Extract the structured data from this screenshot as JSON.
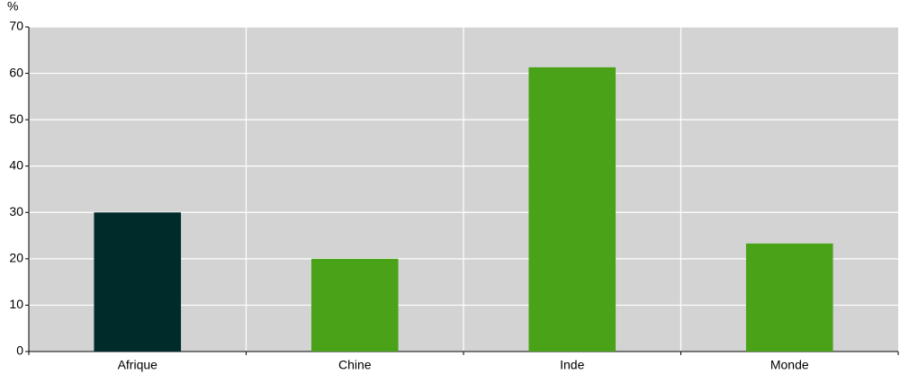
{
  "chart_data": {
    "type": "bar",
    "y_label": "%",
    "categories": [
      "Afrique",
      "Chine",
      "Inde",
      "Monde"
    ],
    "values": [
      30,
      20,
      61.3,
      23.3
    ],
    "colors": [
      "#002b2b",
      "#4aa218",
      "#4aa218",
      "#4aa218"
    ],
    "ylim": [
      0,
      70
    ],
    "yticks": [
      0,
      10,
      20,
      30,
      40,
      50,
      60,
      70
    ],
    "grid": true
  }
}
